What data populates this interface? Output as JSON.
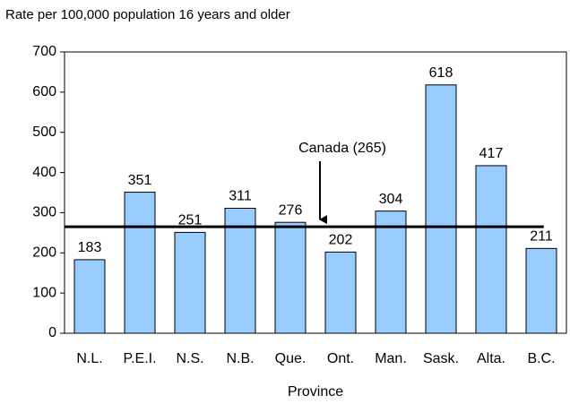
{
  "chart_data": {
    "type": "bar",
    "title": "Rate per 100,000 population 16 years and older",
    "x_label": "Province",
    "categories": [
      "N.L.",
      "P.E.I.",
      "N.S.",
      "N.B.",
      "Que.",
      "Ont.",
      "Man.",
      "Sask.",
      "Alta.",
      "B.C."
    ],
    "values": [
      183,
      351,
      251,
      311,
      276,
      202,
      304,
      618,
      417,
      211
    ],
    "color": "#99ccff",
    "ylim": [
      0,
      700
    ],
    "yticks": [
      0,
      100,
      200,
      300,
      400,
      500,
      600,
      700
    ],
    "grid": false,
    "reference_line": {
      "value": 265,
      "label": "Canada (265)"
    }
  }
}
